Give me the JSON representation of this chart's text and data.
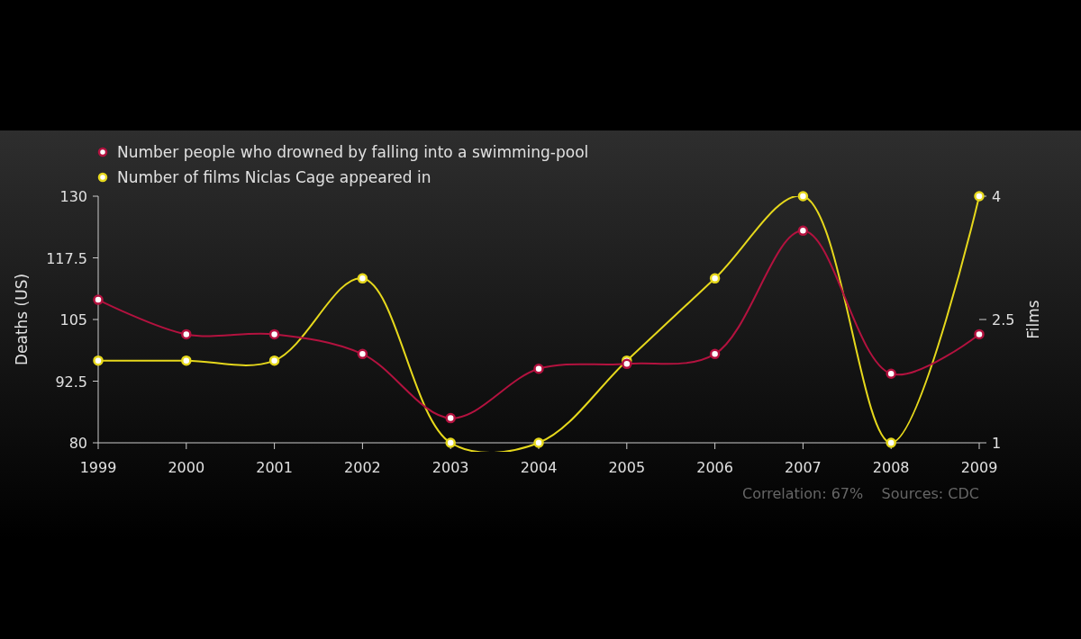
{
  "chart_data": {
    "type": "line",
    "categories": [
      "1999",
      "2000",
      "2001",
      "2002",
      "2003",
      "2004",
      "2005",
      "2006",
      "2007",
      "2008",
      "2009"
    ],
    "series": [
      {
        "name": "Number people who drowned by falling into a swimming-pool",
        "color": "#b3123f",
        "values": [
          109,
          102,
          102,
          98,
          85,
          95,
          96,
          98,
          123,
          94,
          102
        ]
      },
      {
        "name": "Number of films Niclas Cage appeared in",
        "color": "#e6d81c",
        "axis": "y2",
        "values": [
          2,
          2,
          2,
          3,
          1,
          1,
          2,
          3,
          4,
          1,
          4
        ]
      }
    ],
    "ylabel": "Deaths (US)",
    "y2label": "Films",
    "ylim": [
      80,
      130
    ],
    "yticks": [
      80,
      92.5,
      105,
      117.5,
      130
    ],
    "y2lim": [
      1,
      4
    ],
    "y2ticks": [
      1,
      2.5,
      4
    ],
    "legend": "top left",
    "grid": false,
    "marker": "circle",
    "line_style": "solid",
    "annotations": [
      "Correlation: 67%    Sources: CDC"
    ]
  }
}
